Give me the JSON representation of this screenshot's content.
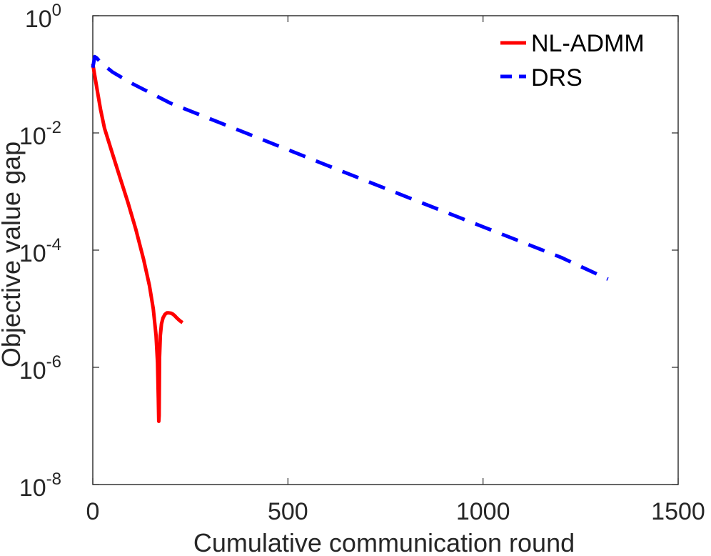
{
  "chart_data": {
    "type": "line",
    "title": "",
    "xlabel": "Cumulative communication round",
    "ylabel": "Objective value gap",
    "xlim": [
      0,
      1500
    ],
    "ylim": [
      1e-08,
      1
    ],
    "yscale": "log",
    "grid": false,
    "legend_position": "top-right",
    "x_ticks": [
      {
        "value": 0,
        "label": "0"
      },
      {
        "value": 500,
        "label": "500"
      },
      {
        "value": 1000,
        "label": "1000"
      },
      {
        "value": 1500,
        "label": "1500"
      }
    ],
    "y_ticks": [
      {
        "value": 1,
        "base": "10",
        "exp": "0"
      },
      {
        "value": 0.01,
        "base": "10",
        "exp": "-2"
      },
      {
        "value": 0.0001,
        "base": "10",
        "exp": "-4"
      },
      {
        "value": 1e-06,
        "base": "10",
        "exp": "-6"
      },
      {
        "value": 1e-08,
        "base": "10",
        "exp": "-8"
      }
    ],
    "series": [
      {
        "name": "NL-ADMM",
        "color": "#ff0000",
        "style": "solid",
        "x": [
          0,
          10,
          20,
          30,
          50,
          70,
          90,
          110,
          130,
          145,
          155,
          162,
          166,
          168,
          169,
          170,
          171,
          173,
          176,
          180,
          185,
          190,
          195,
          200,
          205,
          210,
          215,
          220,
          225,
          230
        ],
        "y": [
          0.15,
          0.06,
          0.025,
          0.012,
          0.0045,
          0.0017,
          0.00065,
          0.00023,
          7e-05,
          2.5e-05,
          1e-05,
          3.5e-06,
          1.2e-06,
          3e-07,
          1.2e-07,
          1.5e-07,
          1.5e-06,
          3.5e-06,
          5.5e-06,
          7e-06,
          8e-06,
          8.5e-06,
          8.5e-06,
          8.4e-06,
          8.1e-06,
          7.6e-06,
          7e-06,
          6.5e-06,
          6.1e-06,
          5.8e-06
        ]
      },
      {
        "name": "DRS",
        "color": "#0000ff",
        "style": "dashed",
        "x": [
          0,
          5,
          10,
          20,
          50,
          100,
          200,
          400,
          600,
          800,
          1000,
          1200,
          1320
        ],
        "y": [
          0.13,
          0.2,
          0.19,
          0.16,
          0.11,
          0.07,
          0.032,
          0.0095,
          0.0028,
          0.00083,
          0.00025,
          7.5e-05,
          3.2e-05
        ]
      }
    ]
  }
}
